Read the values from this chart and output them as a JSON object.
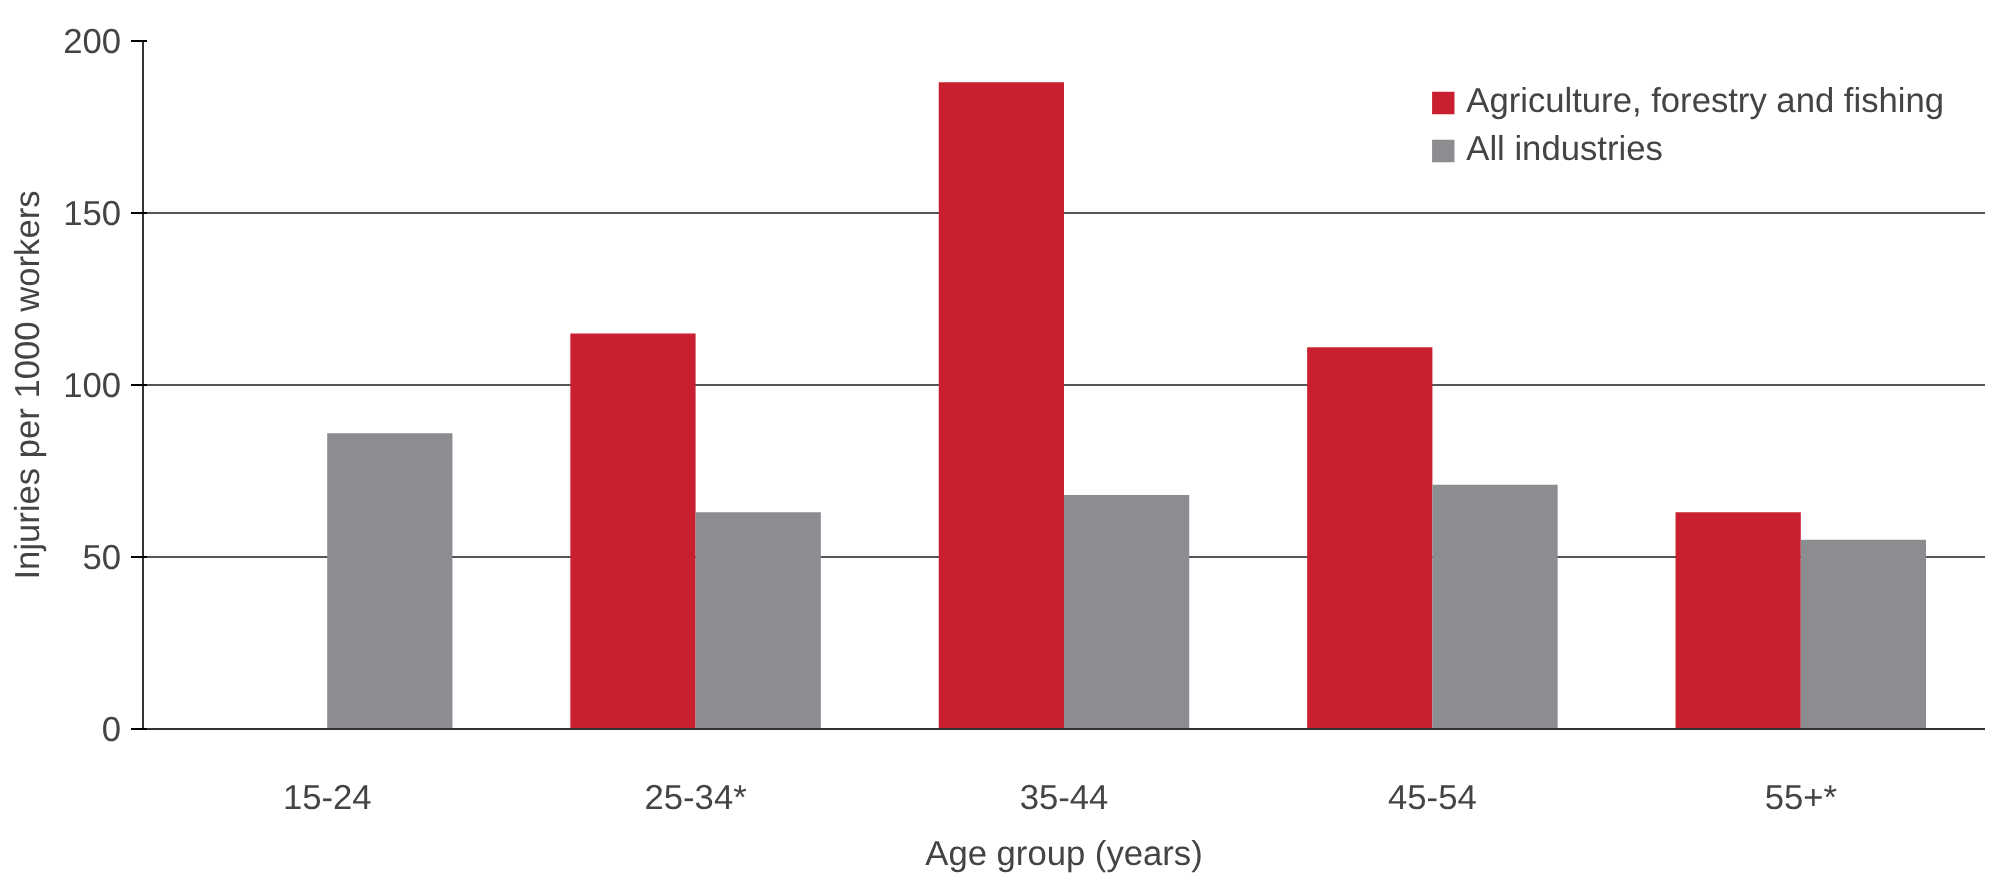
{
  "chart_data": {
    "type": "bar",
    "xlabel": "Age group (years)",
    "ylabel": "Injuries per 1000 workers",
    "categories": [
      "15-24",
      "25-34*",
      "35-44",
      "45-54",
      "55+*"
    ],
    "series": [
      {
        "name": "Agriculture, forestry and fishing",
        "color": "#c8202f",
        "values": [
          null,
          115,
          188,
          111,
          63
        ]
      },
      {
        "name": "All industries",
        "color": "#8c8d90",
        "values": [
          86,
          63,
          68,
          71,
          55
        ]
      }
    ],
    "ylim": [
      0,
      200
    ],
    "yticks": [
      0,
      50,
      100,
      150,
      200
    ],
    "grid": "y",
    "legend": "top right"
  }
}
